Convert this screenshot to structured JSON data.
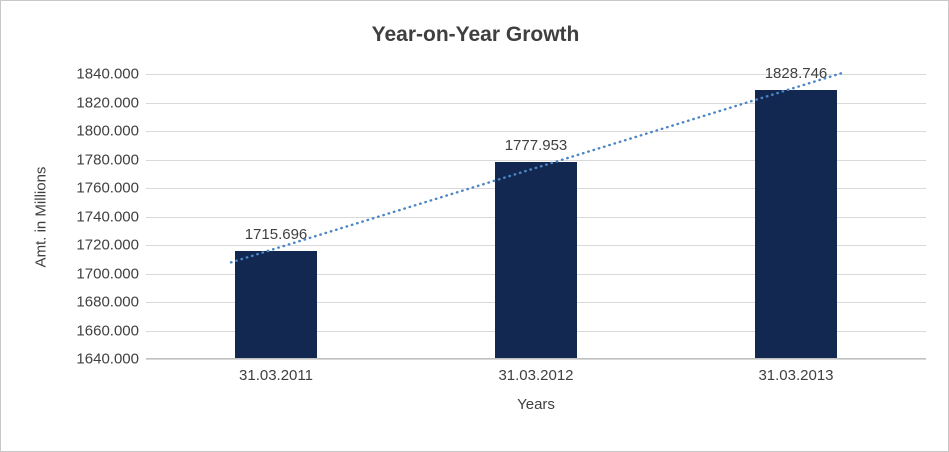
{
  "chart_data": {
    "type": "bar",
    "title": "Year-on-Year Growth",
    "categories": [
      "31.03.2011",
      "31.03.2012",
      "31.03.2013"
    ],
    "values": [
      1715.696,
      1777.953,
      1828.746
    ],
    "data_labels": [
      "1715.696",
      "1777.953",
      "1828.746"
    ],
    "xlabel": "Years",
    "ylabel": "Amt. in Millions",
    "ylim": [
      1640,
      1840
    ],
    "ytick_step": 20,
    "ytick_decimals": 3,
    "grid": true,
    "legend": "none",
    "trendline": {
      "style": "dotted",
      "present": true
    },
    "colors": {
      "bar": "#132850",
      "trendline": "#4a86c6",
      "gridline": "#d9d9d9",
      "axis_line": "#bfbfbf",
      "text": "#404040",
      "border": "#c8c8c8",
      "background": "#ffffff"
    }
  }
}
